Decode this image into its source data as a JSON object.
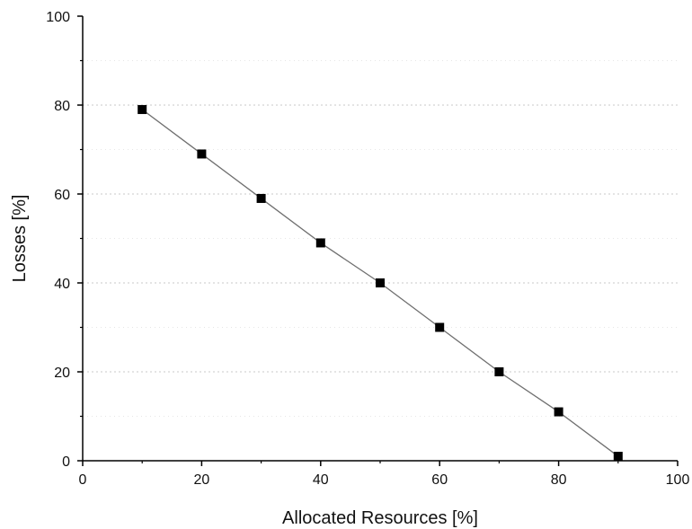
{
  "chart_data": {
    "type": "line",
    "title": "",
    "xlabel": "Allocated Resources [%]",
    "ylabel": "Losses [%]",
    "xlim": [
      0,
      100
    ],
    "ylim": [
      0,
      100
    ],
    "xticks": [
      "0",
      "20",
      "40",
      "60",
      "80",
      "100"
    ],
    "yticks": [
      "0",
      "20",
      "40",
      "60",
      "80",
      "100"
    ],
    "grid": "horizontal dotted",
    "legend": "none",
    "marker": "square",
    "colors": {
      "line": "#6f6f6f",
      "marker": "#000000",
      "axis": "#000000",
      "grid": "#c8c8c8"
    },
    "series": [
      {
        "x": [
          10,
          20,
          30,
          40,
          50,
          60,
          70,
          80,
          90
        ],
        "y": [
          79,
          69,
          59,
          49,
          40,
          30,
          20,
          11,
          1
        ]
      }
    ]
  }
}
